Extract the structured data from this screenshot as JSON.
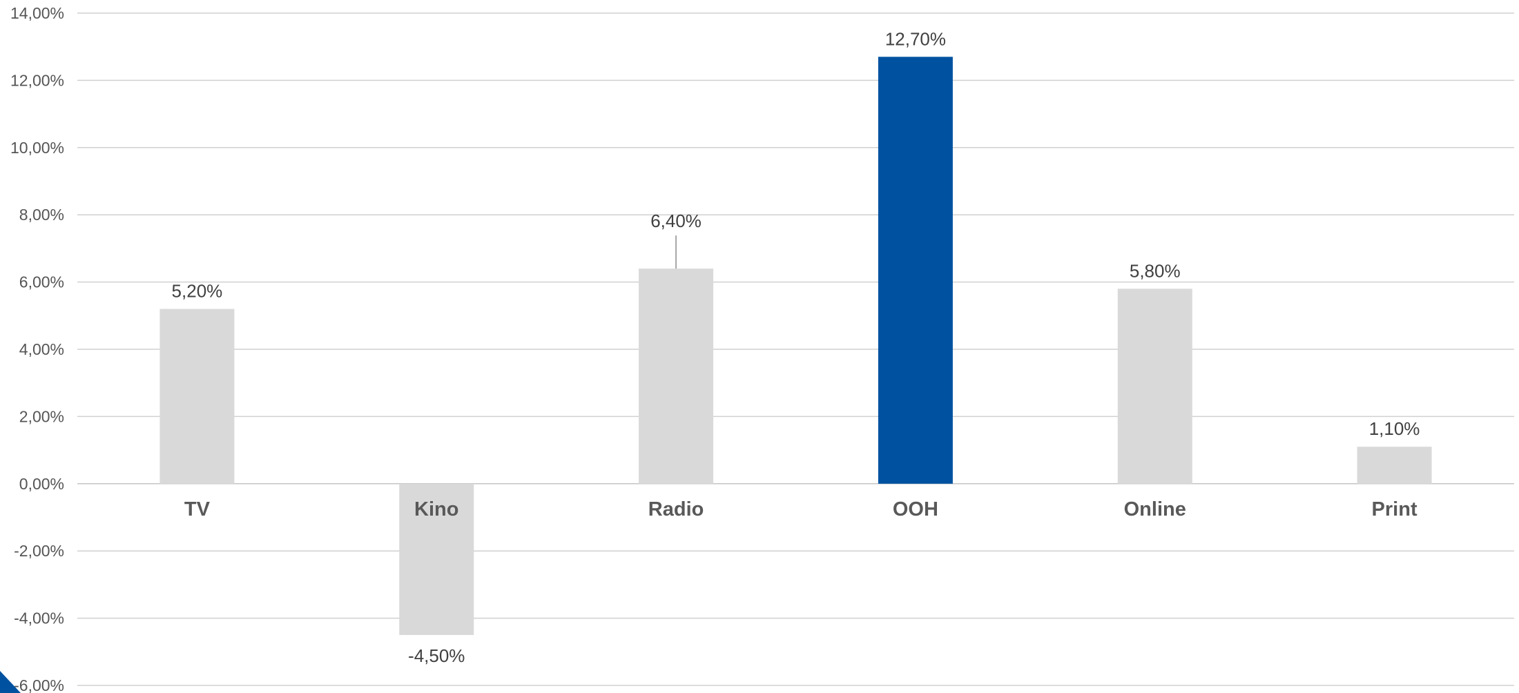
{
  "chart_data": {
    "type": "bar",
    "categories": [
      "TV",
      "Kino",
      "Radio",
      "OOH",
      "Online",
      "Print"
    ],
    "values": [
      5.2,
      -4.5,
      6.4,
      12.7,
      5.8,
      1.1
    ],
    "value_labels": [
      "5,20%",
      "-4,50%",
      "6,40%",
      "12,70%",
      "5,80%",
      "1,10%"
    ],
    "highlight_category": "OOH",
    "colors": {
      "default_bar": "#d9d9d9",
      "highlight_bar": "#0052a0",
      "corner_accent": "#0052a0"
    },
    "ylim": [
      -6,
      14
    ],
    "yticks": [
      14,
      12,
      10,
      8,
      6,
      4,
      2,
      0,
      -2,
      -4,
      -6
    ],
    "ytick_labels": [
      "14,00%",
      "12,00%",
      "10,00%",
      "8,00%",
      "6,00%",
      "4,00%",
      "2,00%",
      "0,00%",
      "-2,00%",
      "-4,00%",
      "-6,00%"
    ],
    "grid": true,
    "legend": "none",
    "title": "",
    "xlabel": "",
    "ylabel": ""
  }
}
